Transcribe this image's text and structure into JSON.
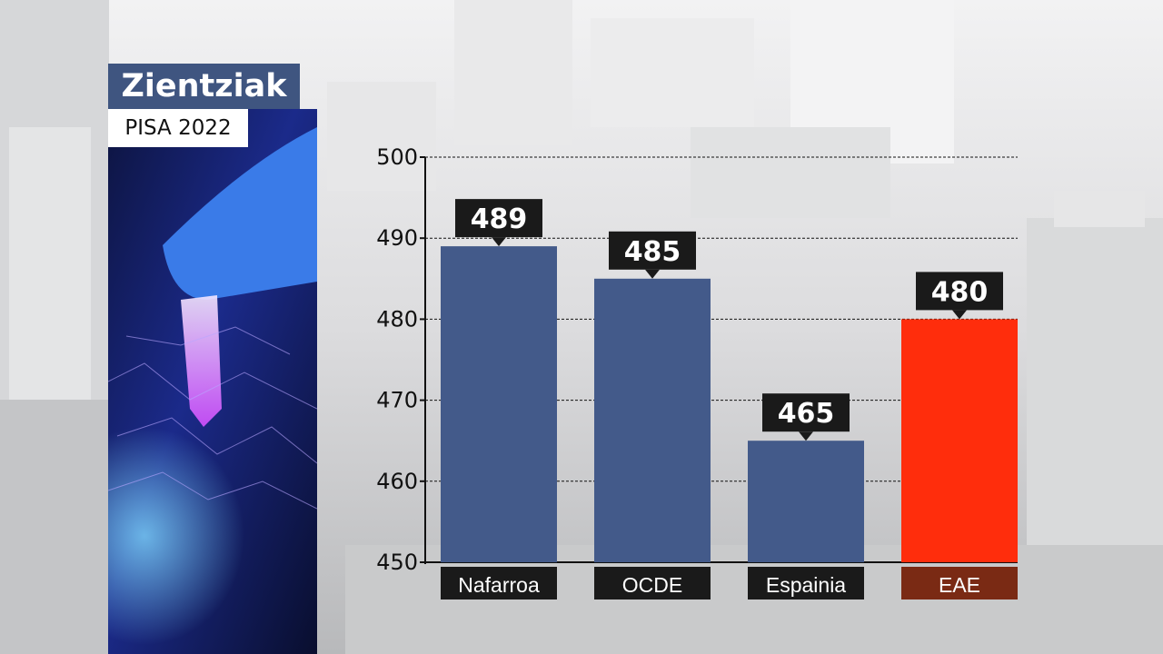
{
  "header": {
    "title": "Zientziak",
    "subtitle": "PISA 2022"
  },
  "colors": {
    "bar_default": "#435a8a",
    "bar_highlight": "#ff2d0c",
    "label_bg_default": "#1a1a1a",
    "label_bg_highlight": "#7a2a14",
    "callout_bg": "#1a1a1a",
    "title_bg": "#3f5580"
  },
  "chart_data": {
    "type": "bar",
    "categories": [
      "Nafarroa",
      "OCDE",
      "Espainia",
      "EAE"
    ],
    "values": [
      489,
      485,
      465,
      480
    ],
    "highlight": [
      "EAE"
    ],
    "ylim": [
      450,
      500
    ],
    "yticks": [
      450,
      460,
      470,
      480,
      490,
      500
    ],
    "grid": true
  }
}
